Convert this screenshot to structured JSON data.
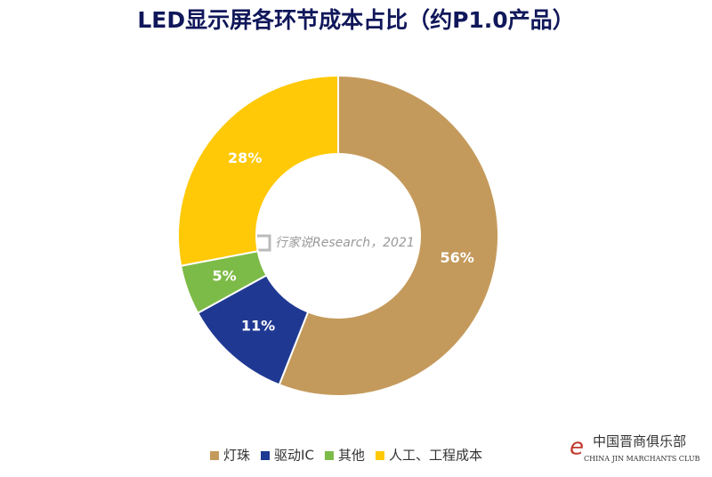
{
  "chart_data": {
    "type": "donut",
    "title": "LED显示屏各环节成本占比（约P1.0产品）",
    "categories": [
      "灯珠",
      "驱动IC",
      "其他",
      "人工、工程成本"
    ],
    "values": [
      56,
      11,
      5,
      28
    ],
    "value_labels": [
      "56%",
      "11%",
      "5%",
      "28%"
    ],
    "colors": [
      "#c49a5c",
      "#1f3993",
      "#7dbb48",
      "#ffc907"
    ],
    "legend": "bottom"
  },
  "watermark": "行家说Research，2021",
  "logo": {
    "name": "中国晋商俱乐部",
    "subtitle": "CHINA JIN MARCHANTS CLUB"
  }
}
